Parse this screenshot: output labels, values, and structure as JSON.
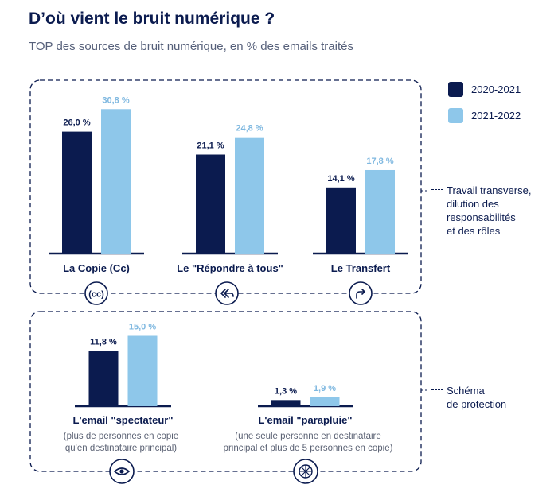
{
  "title": "D’où vient le bruit numérique ?",
  "subtitle": "TOP des sources de bruit numérique, en % des emails traités",
  "legend": {
    "items": [
      {
        "label": "2020-2021",
        "color": "#0b1b4f"
      },
      {
        "label": "2021-2022",
        "color": "#8ec7ea"
      }
    ]
  },
  "annotations": {
    "group1": "Travail transverse,\ndilution des\nresponsabilités\net des rôles",
    "group2": "Schéma\nde protection"
  },
  "notes": {
    "spectateur": "(plus de personnes en copie\nqu'en destinataire principal)",
    "parapluie": "(une seule personne en destinataire\nprincipal et plus de 5 personnes en copie)"
  },
  "icons": {
    "copie": "cc-icon",
    "repondre": "reply-all-icon",
    "transfert": "forward-icon",
    "spectateur": "eye-icon",
    "parapluie": "umbrella-icon"
  },
  "icon_text": {
    "cc": "(cc)"
  },
  "chart_data": [
    {
      "type": "bar",
      "categories": [
        "La Copie (Cc)",
        "Le \"Répondre à tous\"",
        "Le Transfert"
      ],
      "series": [
        {
          "name": "2020-2021",
          "values": [
            26.0,
            21.1,
            14.1
          ],
          "labels": [
            "26,0 %",
            "21,1 %",
            "14,1 %"
          ]
        },
        {
          "name": "2021-2022",
          "values": [
            30.8,
            24.8,
            17.8
          ],
          "labels": [
            "30,8 %",
            "24,8 %",
            "17,8 %"
          ]
        }
      ],
      "ylim": [
        0,
        32
      ]
    },
    {
      "type": "bar",
      "categories": [
        "L'email \"spectateur\"",
        "L'email \"parapluie\""
      ],
      "series": [
        {
          "name": "2020-2021",
          "values": [
            11.8,
            1.3
          ],
          "labels": [
            "11,8 %",
            "1,3 %"
          ]
        },
        {
          "name": "2021-2022",
          "values": [
            15.0,
            1.9
          ],
          "labels": [
            "15,0 %",
            "1,9 %"
          ]
        }
      ],
      "ylim": [
        0,
        32
      ]
    }
  ]
}
